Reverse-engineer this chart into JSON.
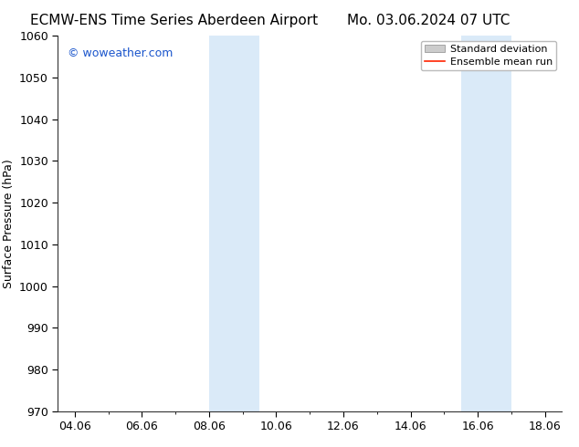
{
  "title_left": "ECMW-ENS Time Series Aberdeen Airport",
  "title_right": "Mo. 03.06.2024 07 UTC",
  "ylabel": "Surface Pressure (hPa)",
  "background_color": "#ffffff",
  "plot_bg_color": "#ffffff",
  "ylim": [
    970,
    1060
  ],
  "yticks": [
    970,
    980,
    990,
    1000,
    1010,
    1020,
    1030,
    1040,
    1050,
    1060
  ],
  "xlim_start": 3.5,
  "xlim_end": 18.5,
  "xtick_labels": [
    "04.06",
    "06.06",
    "08.06",
    "10.06",
    "12.06",
    "14.06",
    "16.06",
    "18.06"
  ],
  "xtick_positions": [
    4,
    6,
    8,
    10,
    12,
    14,
    16,
    18
  ],
  "shaded_bands": [
    {
      "x_start": 8.0,
      "x_end": 9.5
    },
    {
      "x_start": 15.5,
      "x_end": 17.0
    }
  ],
  "shade_color": "#daeaf8",
  "watermark_text": "© woweather.com",
  "watermark_color": "#1a55cc",
  "legend_items": [
    {
      "label": "Standard deviation",
      "color": "#cccccc",
      "type": "patch"
    },
    {
      "label": "Ensemble mean run",
      "color": "#ff2200",
      "type": "line"
    }
  ],
  "title_fontsize": 11,
  "axis_label_fontsize": 9,
  "tick_fontsize": 9,
  "watermark_fontsize": 9
}
